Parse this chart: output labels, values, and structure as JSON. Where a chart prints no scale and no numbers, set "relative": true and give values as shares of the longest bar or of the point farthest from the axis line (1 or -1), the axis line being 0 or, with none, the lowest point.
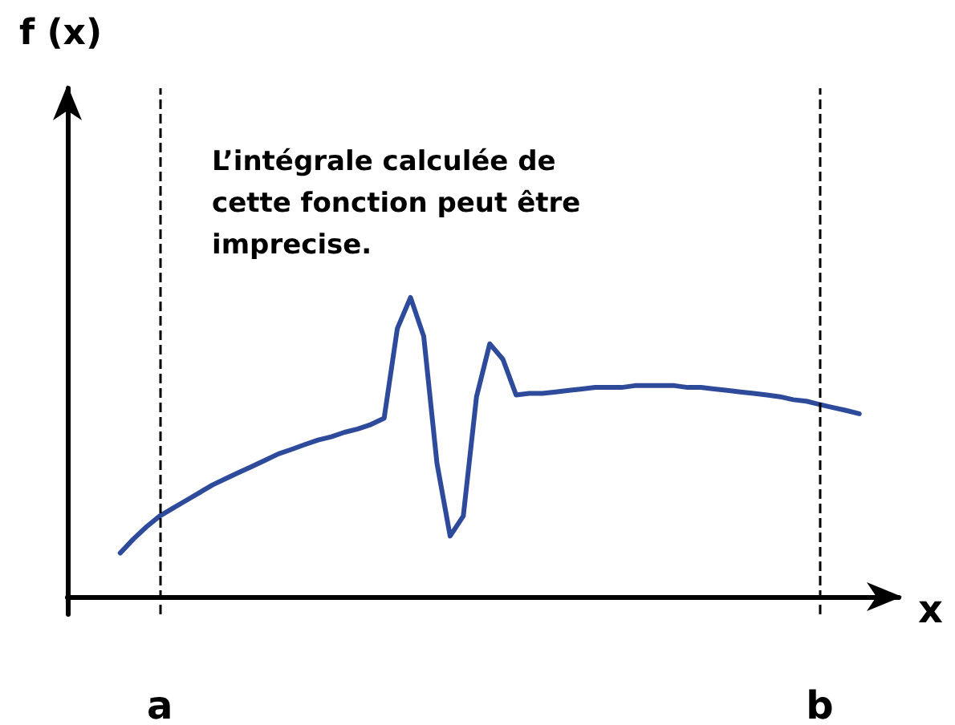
{
  "chart_data": {
    "type": "line",
    "relative": true,
    "xlabel": "x",
    "annotations": [
      "f (x)",
      "L’intégrale calculée de\ncette fonction peut être\nimprecise."
    ],
    "categories": [
      null,
      null,
      null,
      "a",
      null,
      null,
      null,
      null,
      null,
      null,
      null,
      null,
      null,
      null,
      null,
      null,
      null,
      null,
      null,
      null,
      null,
      null,
      null,
      null,
      null,
      null,
      null,
      null,
      null,
      null,
      null,
      null,
      null,
      null,
      null,
      null,
      null,
      null,
      null,
      null,
      null,
      null,
      null,
      null,
      null,
      null,
      null,
      null,
      null,
      null,
      null,
      null,
      null,
      "b",
      null,
      null,
      null
    ],
    "tick_labels": "x",
    "grid": false,
    "marker": "none",
    "line_style": "solid",
    "series": [
      {
        "color": "#2e4a9a",
        "values": [
          0.145,
          0.192,
          0.233,
          0.269,
          0.295,
          0.321,
          0.347,
          0.373,
          0.394,
          0.415,
          0.435,
          0.456,
          0.477,
          0.492,
          0.508,
          0.523,
          0.534,
          0.549,
          0.56,
          0.575,
          0.596,
          0.896,
          1,
          0.87,
          0.446,
          0.202,
          0.269,
          0.668,
          0.845,
          0.793,
          0.674,
          0.679,
          0.679,
          0.684,
          0.689,
          0.694,
          0.699,
          0.699,
          0.699,
          0.705,
          0.705,
          0.705,
          0.705,
          0.699,
          0.699,
          0.694,
          0.689,
          0.684,
          0.679,
          0.674,
          0.668,
          0.658,
          0.653,
          0.642,
          0.632,
          0.622,
          0.611
        ]
      }
    ],
    "ref_lines": [
      {
        "axis": "x",
        "value": "a",
        "color": "#000000",
        "line_style": "dashed"
      },
      {
        "axis": "x",
        "value": "b",
        "color": "#000000",
        "line_style": "dashed"
      }
    ]
  }
}
